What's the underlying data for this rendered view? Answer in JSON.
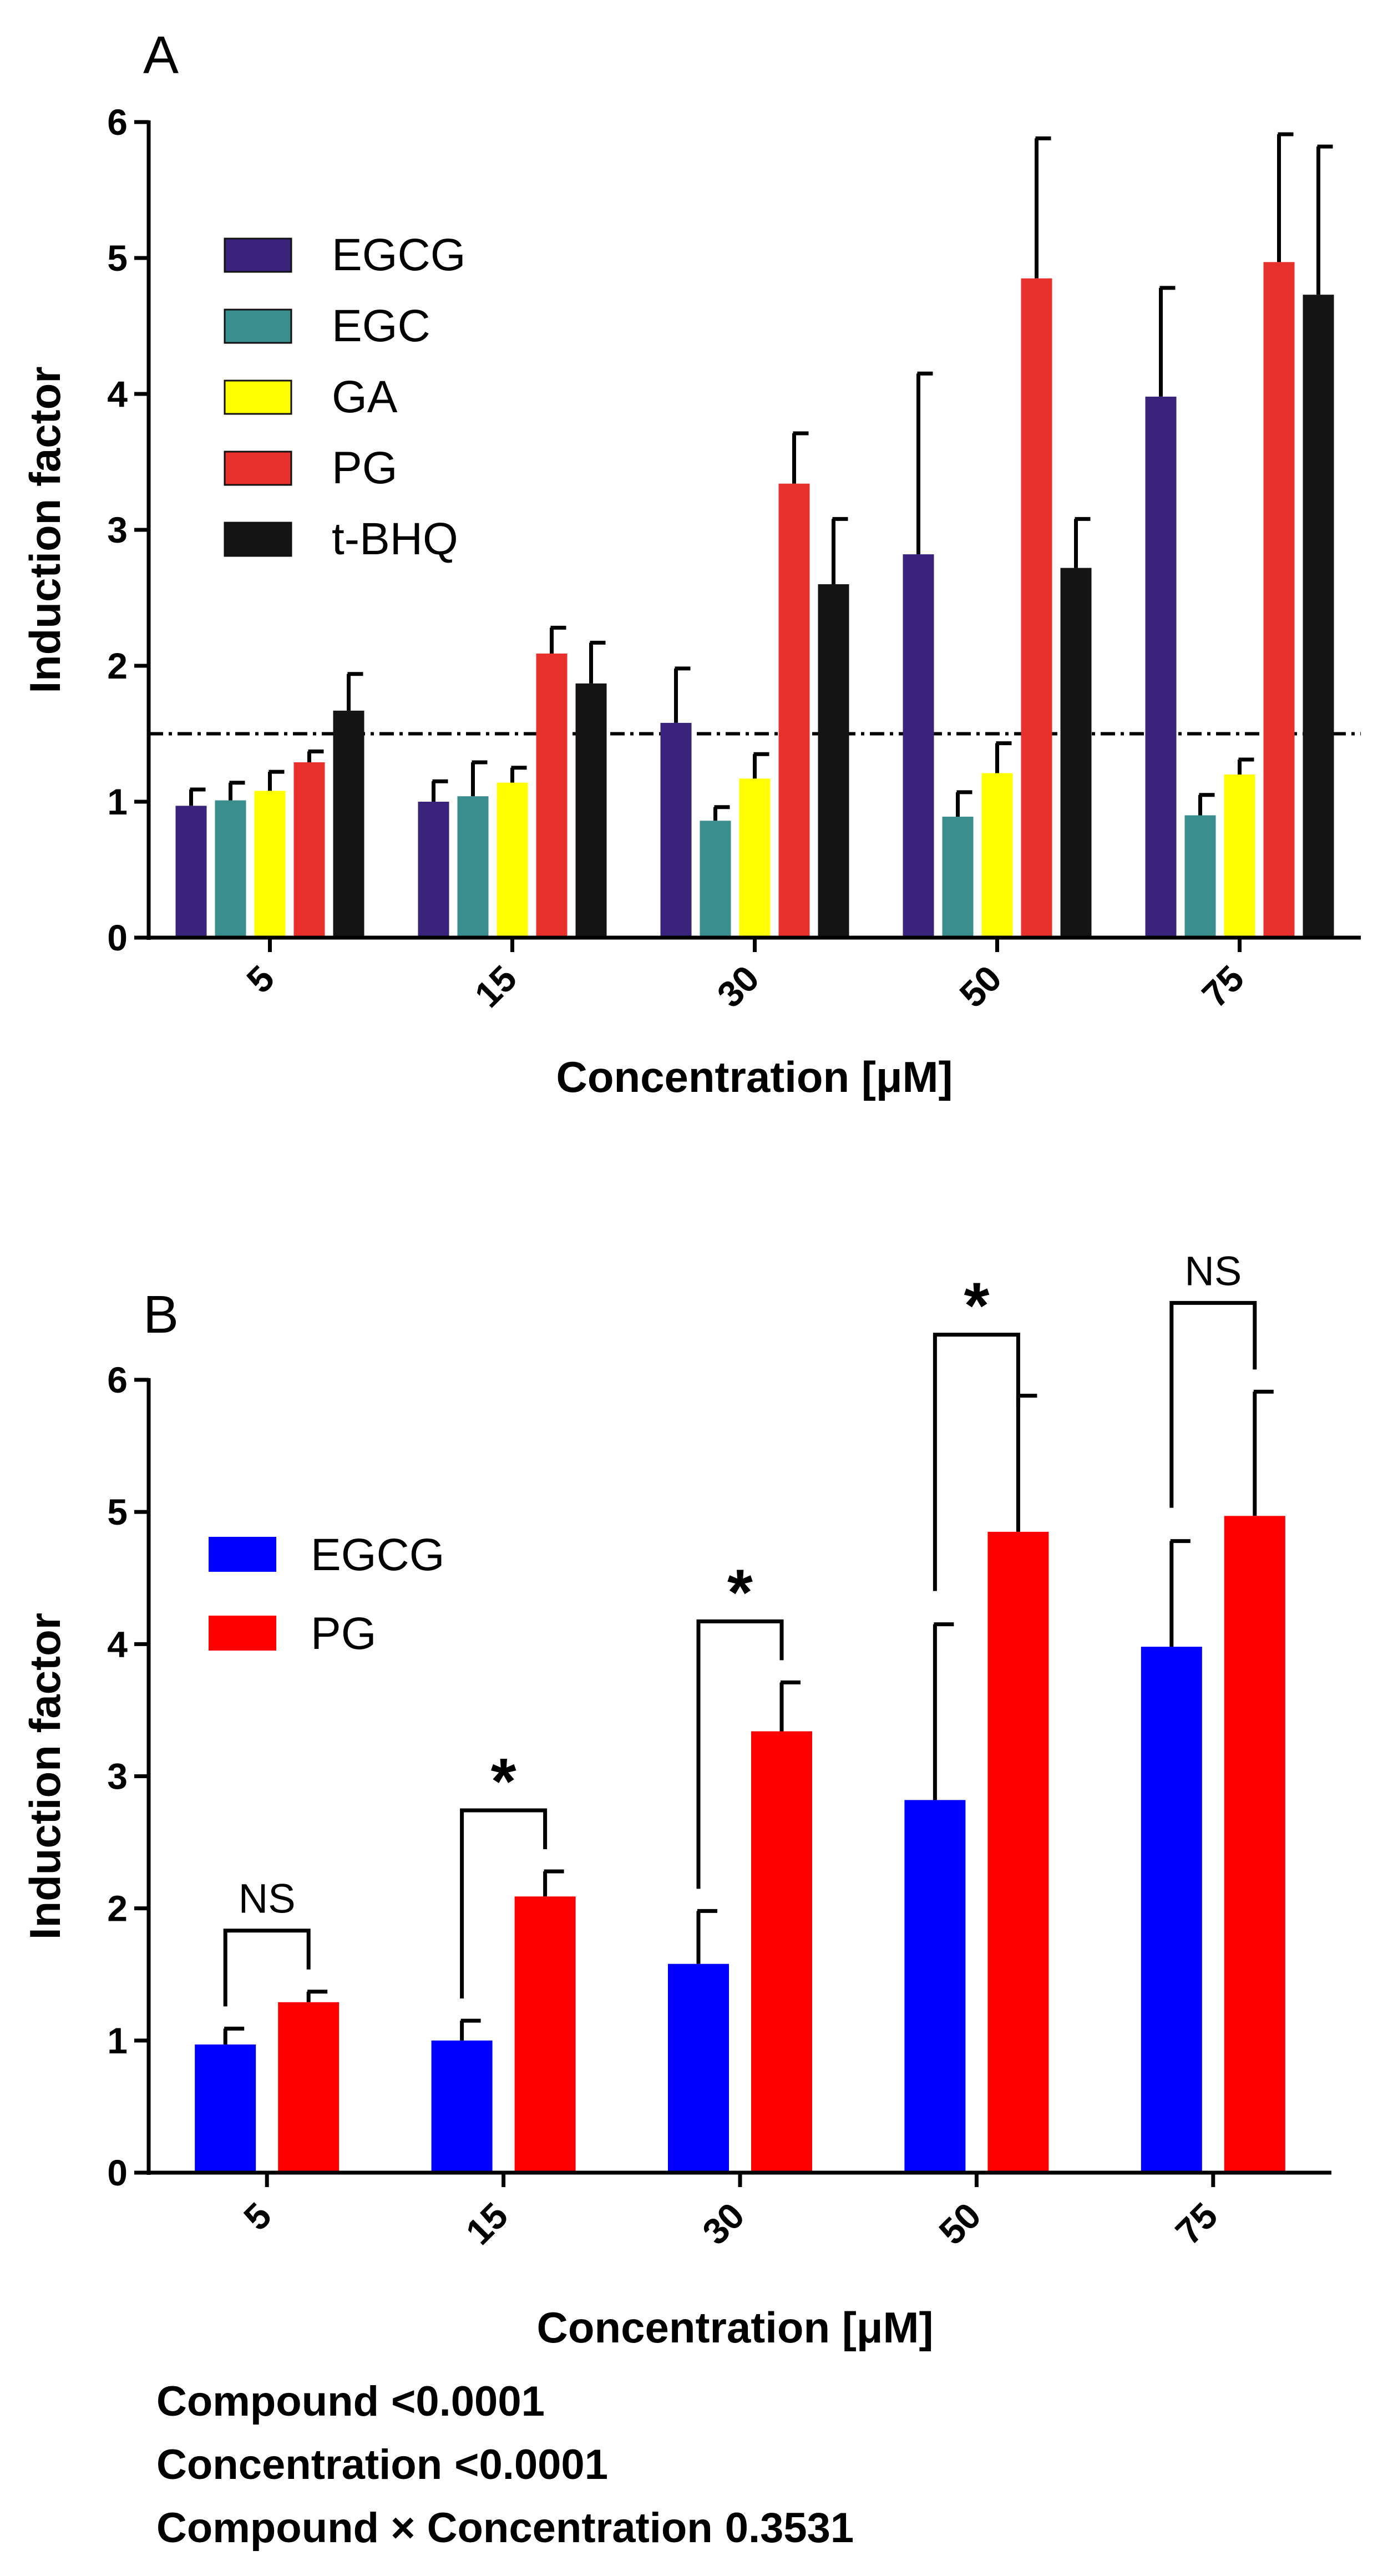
{
  "chart_data": [
    {
      "panel": "A",
      "type": "bar",
      "xlabel": "Concentration [μM]",
      "ylabel": "Induction factor",
      "ylim": [
        0,
        6
      ],
      "yticks": [
        "0",
        "1",
        "2",
        "3",
        "4",
        "5",
        "6"
      ],
      "categories": [
        "5",
        "15",
        "30",
        "50",
        "75"
      ],
      "threshold": 1.5,
      "series": [
        {
          "name": "EGCG",
          "color": "#3a237a",
          "values": [
            0.97,
            1.0,
            1.58,
            2.82,
            3.98
          ],
          "errors": [
            0.12,
            0.15,
            0.4,
            1.33,
            0.8
          ]
        },
        {
          "name": "EGC",
          "color": "#3a8e8e",
          "values": [
            1.01,
            1.04,
            0.86,
            0.89,
            0.9
          ],
          "errors": [
            0.13,
            0.25,
            0.1,
            0.18,
            0.15
          ]
        },
        {
          "name": "GA",
          "color": "#ffff00",
          "values": [
            1.08,
            1.14,
            1.17,
            1.21,
            1.2
          ],
          "errors": [
            0.14,
            0.11,
            0.18,
            0.22,
            0.11
          ]
        },
        {
          "name": "PG",
          "color": "#e8302d",
          "values": [
            1.29,
            2.09,
            3.34,
            4.85,
            4.97
          ],
          "errors": [
            0.08,
            0.19,
            0.37,
            1.03,
            0.94
          ]
        },
        {
          "name": "t-BHQ",
          "color": "#141414",
          "values": [
            1.67,
            1.87,
            2.6,
            2.72,
            4.73
          ],
          "errors": [
            0.27,
            0.3,
            0.48,
            0.36,
            1.09
          ]
        }
      ]
    },
    {
      "panel": "B",
      "type": "bar",
      "xlabel": "Concentration [μM]",
      "ylabel": "Induction factor",
      "ylim": [
        0,
        6
      ],
      "yticks": [
        "0",
        "1",
        "2",
        "3",
        "4",
        "5",
        "6"
      ],
      "categories": [
        "5",
        "15",
        "30",
        "50",
        "75"
      ],
      "series": [
        {
          "name": "EGCG",
          "color": "#0000ff",
          "values": [
            0.97,
            1.0,
            1.58,
            2.82,
            3.98
          ],
          "errors": [
            0.12,
            0.15,
            0.4,
            1.33,
            0.8
          ]
        },
        {
          "name": "PG",
          "color": "#ff0000",
          "values": [
            1.29,
            2.09,
            3.34,
            4.85,
            4.97
          ],
          "errors": [
            0.08,
            0.19,
            0.37,
            1.03,
            0.94
          ]
        }
      ],
      "significance": [
        "NS",
        "*",
        "*",
        "*",
        "NS"
      ],
      "statistics": [
        {
          "label": "Compound",
          "value": "<0.0001"
        },
        {
          "label": "Concentration",
          "value": "<0.0001"
        },
        {
          "label": "Compound × Concentration",
          "value": "0.3531"
        }
      ]
    }
  ]
}
